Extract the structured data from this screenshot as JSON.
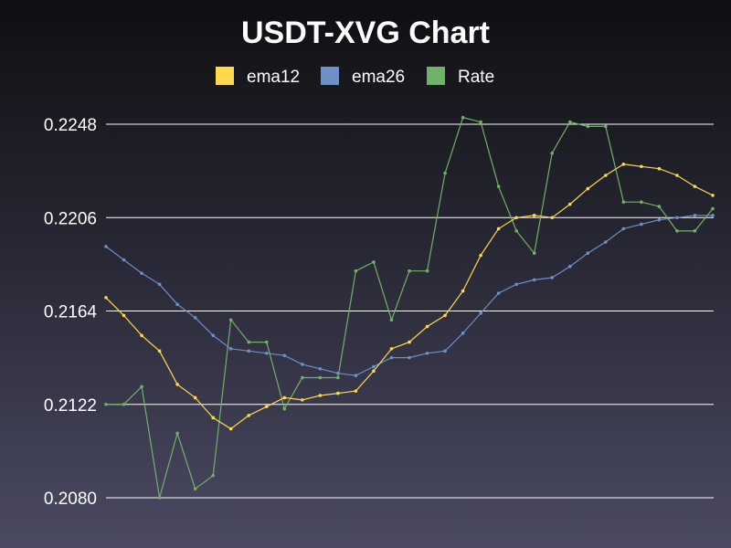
{
  "chart_data": {
    "type": "line",
    "title": "USDT-XVG Chart",
    "xlabel": "",
    "ylabel": "",
    "ylim": [
      0.208,
      0.2248
    ],
    "yticks": [
      "0.2248",
      "0.2206",
      "0.2164",
      "0.2122",
      "0.2080"
    ],
    "grid": true,
    "legend_position": "top-center",
    "series": [
      {
        "name": "ema12",
        "color": "#ffd84d",
        "values": [
          0.217,
          0.2162,
          0.2153,
          0.2146,
          0.2131,
          0.2125,
          0.2116,
          0.2111,
          0.2117,
          0.2121,
          0.2125,
          0.2124,
          0.2126,
          0.2127,
          0.2128,
          0.2137,
          0.2147,
          0.215,
          0.2157,
          0.2162,
          0.2173,
          0.2189,
          0.2201,
          0.2206,
          0.2207,
          0.2206,
          0.2212,
          0.2219,
          0.2225,
          0.223,
          0.2229,
          0.2228,
          0.2225,
          0.222,
          0.2216
        ]
      },
      {
        "name": "ema26",
        "color": "#6e8fc7",
        "values": [
          0.2193,
          0.2187,
          0.2181,
          0.2176,
          0.2167,
          0.2161,
          0.2153,
          0.2147,
          0.2146,
          0.2145,
          0.2144,
          0.214,
          0.2138,
          0.2136,
          0.2135,
          0.2139,
          0.2143,
          0.2143,
          0.2145,
          0.2146,
          0.2154,
          0.2163,
          0.2172,
          0.2176,
          0.2178,
          0.2179,
          0.2184,
          0.219,
          0.2195,
          0.2201,
          0.2203,
          0.2205,
          0.2206,
          0.2207,
          0.2207
        ]
      },
      {
        "name": "Rate",
        "color": "#72b06a",
        "values": [
          0.2122,
          0.2122,
          0.213,
          0.208,
          0.2109,
          0.2084,
          0.209,
          0.216,
          0.215,
          0.215,
          0.212,
          0.2134,
          0.2134,
          0.2134,
          0.2182,
          0.2186,
          0.216,
          0.2182,
          0.2182,
          0.2226,
          0.2251,
          0.2249,
          0.222,
          0.22,
          0.219,
          0.2235,
          0.2249,
          0.2247,
          0.2247,
          0.2213,
          0.2213,
          0.2211,
          0.22,
          0.22,
          0.221
        ]
      }
    ]
  }
}
